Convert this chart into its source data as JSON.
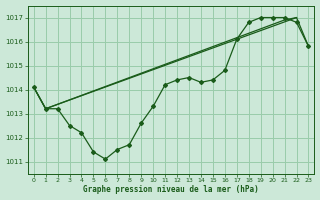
{
  "background_color": "#cce8d8",
  "grid_color": "#99ccaa",
  "line_color": "#1a5c1a",
  "title": "Graphe pression niveau de la mer (hPa)",
  "ylim": [
    1010.5,
    1017.5
  ],
  "xlim": [
    -0.5,
    23.5
  ],
  "yticks": [
    1011,
    1012,
    1013,
    1014,
    1015,
    1016,
    1017
  ],
  "xticks": [
    0,
    1,
    2,
    3,
    4,
    5,
    6,
    7,
    8,
    9,
    10,
    11,
    12,
    13,
    14,
    15,
    16,
    17,
    18,
    19,
    20,
    21,
    22,
    23
  ],
  "series1_x": [
    0,
    1,
    2,
    3,
    4,
    5,
    6,
    7,
    8,
    9,
    10,
    11,
    12,
    13,
    14,
    15,
    16,
    17,
    18,
    19,
    20,
    21,
    22,
    23
  ],
  "series1_y": [
    1014.1,
    1013.2,
    1013.2,
    1012.5,
    1012.2,
    1011.4,
    1011.1,
    1011.5,
    1011.7,
    1012.6,
    1013.3,
    1014.2,
    1014.4,
    1014.5,
    1014.3,
    1014.4,
    1014.8,
    1016.1,
    1016.8,
    1017.0,
    1017.0,
    1017.0,
    1016.8,
    1015.8
  ],
  "series2_x": [
    0,
    1,
    22,
    23
  ],
  "series2_y": [
    1014.1,
    1013.2,
    1017.0,
    1015.8
  ],
  "series3_x": [
    0,
    1,
    21,
    22
  ],
  "series3_y": [
    1014.1,
    1013.2,
    1016.9,
    1017.0
  ]
}
